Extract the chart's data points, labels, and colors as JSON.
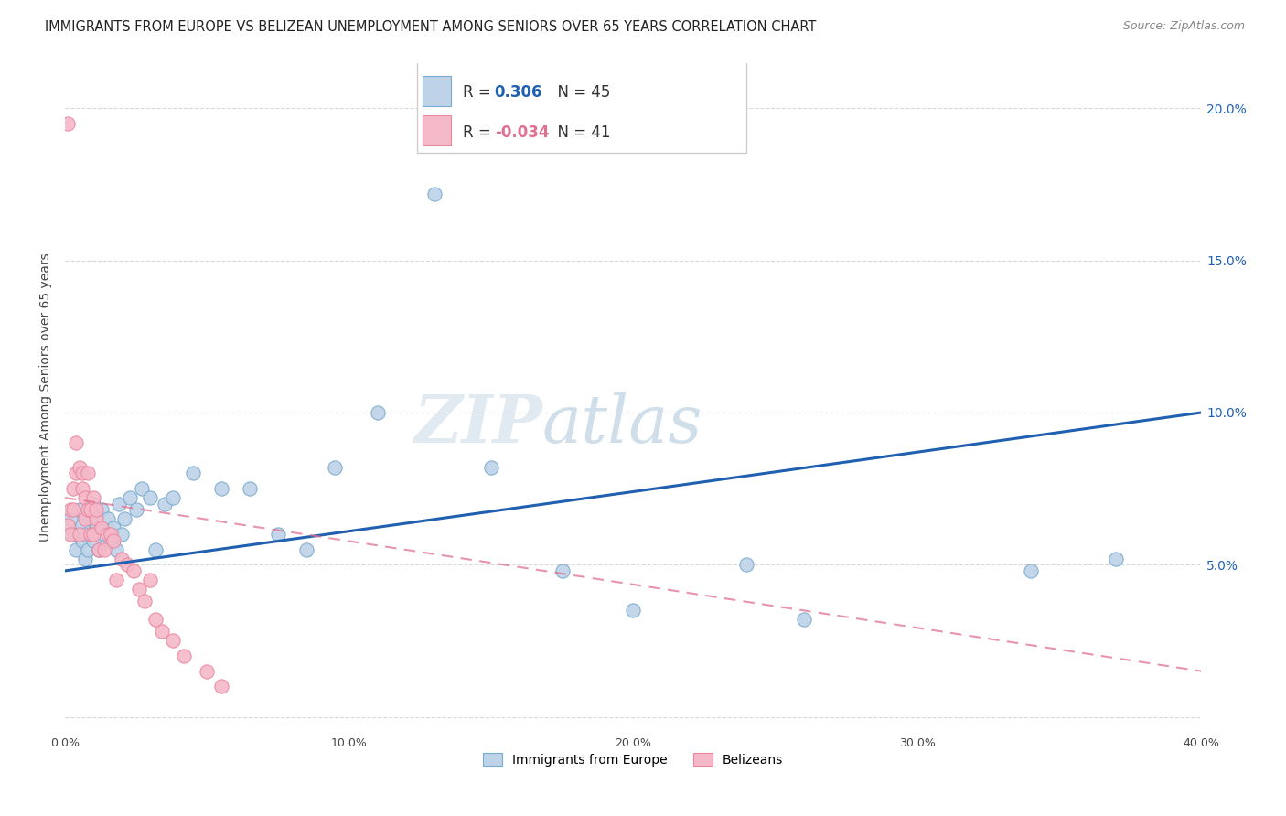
{
  "title": "IMMIGRANTS FROM EUROPE VS BELIZEAN UNEMPLOYMENT AMONG SENIORS OVER 65 YEARS CORRELATION CHART",
  "source": "Source: ZipAtlas.com",
  "ylabel": "Unemployment Among Seniors over 65 years",
  "xlim": [
    0.0,
    0.4
  ],
  "ylim": [
    -0.005,
    0.215
  ],
  "xtick_vals": [
    0.0,
    0.05,
    0.1,
    0.15,
    0.2,
    0.25,
    0.3,
    0.35,
    0.4
  ],
  "xtick_labels": [
    "0.0%",
    "",
    "10.0%",
    "",
    "20.0%",
    "",
    "30.0%",
    "",
    "40.0%"
  ],
  "ytick_vals_right": [
    0.05,
    0.1,
    0.15,
    0.2
  ],
  "ytick_labels_right": [
    "5.0%",
    "10.0%",
    "15.0%",
    "20.0%"
  ],
  "blue_R": "0.306",
  "blue_N": "45",
  "pink_R": "-0.034",
  "pink_N": "41",
  "blue_fill_color": "#bed3e8",
  "blue_edge_color": "#7aaace",
  "pink_fill_color": "#f5b8c8",
  "pink_edge_color": "#e888a0",
  "blue_line_color": "#2060b0",
  "pink_line_color": "#e07090",
  "blue_R_color": "#2060b0",
  "pink_R_color": "#e07090",
  "watermark_color": "#ccd8e8",
  "grid_color": "#d8d8d8",
  "background_color": "#ffffff",
  "title_fontsize": 10.5,
  "source_fontsize": 9,
  "axis_label_fontsize": 9,
  "legend_fontsize": 11,
  "scatter_size": 120,
  "legend_label_blue": "Immigrants from Europe",
  "legend_label_pink": "Belizeans",
  "blue_scatter_x": [
    0.002,
    0.003,
    0.004,
    0.005,
    0.006,
    0.006,
    0.007,
    0.007,
    0.008,
    0.009,
    0.01,
    0.01,
    0.011,
    0.012,
    0.013,
    0.014,
    0.015,
    0.016,
    0.017,
    0.018,
    0.019,
    0.02,
    0.021,
    0.023,
    0.025,
    0.027,
    0.03,
    0.032,
    0.035,
    0.038,
    0.045,
    0.055,
    0.065,
    0.075,
    0.085,
    0.095,
    0.11,
    0.13,
    0.15,
    0.175,
    0.2,
    0.24,
    0.26,
    0.34,
    0.37
  ],
  "blue_scatter_y": [
    0.065,
    0.06,
    0.055,
    0.068,
    0.058,
    0.063,
    0.06,
    0.052,
    0.055,
    0.065,
    0.058,
    0.07,
    0.062,
    0.055,
    0.068,
    0.06,
    0.065,
    0.058,
    0.062,
    0.055,
    0.07,
    0.06,
    0.065,
    0.072,
    0.068,
    0.075,
    0.072,
    0.055,
    0.07,
    0.072,
    0.08,
    0.075,
    0.075,
    0.06,
    0.055,
    0.082,
    0.1,
    0.172,
    0.082,
    0.048,
    0.035,
    0.05,
    0.032,
    0.048,
    0.052
  ],
  "pink_scatter_x": [
    0.001,
    0.001,
    0.002,
    0.002,
    0.003,
    0.003,
    0.004,
    0.004,
    0.005,
    0.005,
    0.006,
    0.006,
    0.007,
    0.007,
    0.008,
    0.008,
    0.009,
    0.009,
    0.01,
    0.01,
    0.011,
    0.011,
    0.012,
    0.013,
    0.014,
    0.015,
    0.016,
    0.017,
    0.018,
    0.02,
    0.022,
    0.024,
    0.026,
    0.028,
    0.03,
    0.032,
    0.034,
    0.038,
    0.042,
    0.05,
    0.055
  ],
  "pink_scatter_y": [
    0.195,
    0.063,
    0.06,
    0.068,
    0.068,
    0.075,
    0.08,
    0.09,
    0.082,
    0.06,
    0.075,
    0.08,
    0.072,
    0.065,
    0.068,
    0.08,
    0.068,
    0.06,
    0.06,
    0.072,
    0.065,
    0.068,
    0.055,
    0.062,
    0.055,
    0.06,
    0.06,
    0.058,
    0.045,
    0.052,
    0.05,
    0.048,
    0.042,
    0.038,
    0.045,
    0.032,
    0.028,
    0.025,
    0.02,
    0.015,
    0.01
  ],
  "blue_line_x": [
    0.0,
    0.4
  ],
  "blue_line_y": [
    0.048,
    0.1
  ],
  "pink_line_x": [
    0.0,
    0.4
  ],
  "pink_line_y": [
    0.072,
    0.015
  ]
}
